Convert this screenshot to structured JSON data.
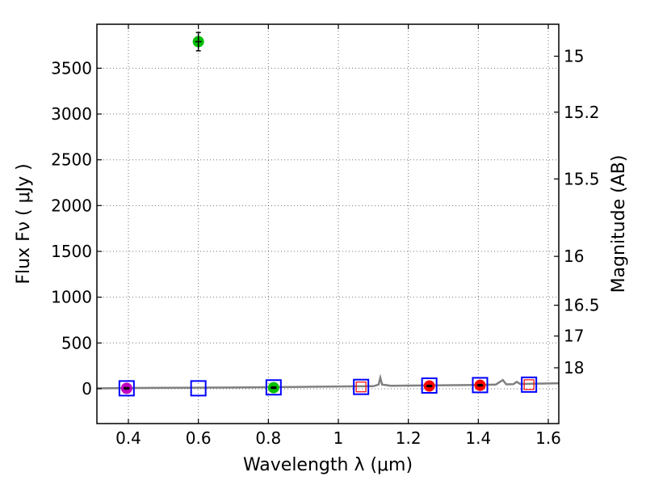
{
  "chart_data": {
    "type": "scatter",
    "title": "",
    "xlabel": "Wavelength  λ (μm)",
    "ylabel": "Flux  Fν  ( μJy )",
    "ylabel2": "Magnitude (AB)",
    "xlim": [
      0.31,
      1.63
    ],
    "ylim": [
      -380,
      3980
    ],
    "x_ticks": [
      0.4,
      0.6,
      0.8,
      1.0,
      1.2,
      1.4,
      1.6
    ],
    "x_tick_labels": [
      "0.4",
      "0.6",
      "0.8",
      "1",
      "1.2",
      "1.4",
      "1.6"
    ],
    "y_ticks": [
      0,
      500,
      1000,
      1500,
      2000,
      2500,
      3000,
      3500
    ],
    "y_tick_labels": [
      "0",
      "500",
      "1000",
      "1500",
      "2000",
      "2500",
      "3000",
      "3500"
    ],
    "mag_ticks": [
      15,
      15.2,
      15.5,
      16,
      16.5,
      17,
      18
    ],
    "mag_tick_labels": [
      "15",
      "15.2",
      "15.5",
      "16",
      "16.5",
      "17",
      "18"
    ],
    "grid": true,
    "colors": {
      "model": "#808080",
      "model_box": "#0000ff",
      "magenta": "#bf00bf",
      "green": "#00bf00",
      "red": "#ff0000",
      "errorbar": "#000000"
    },
    "series": [
      {
        "name": "model spectrum",
        "kind": "line",
        "x": [
          0.31,
          0.4,
          0.5,
          0.6,
          0.7,
          0.8,
          0.9,
          1.0,
          1.05,
          1.1,
          1.115,
          1.12,
          1.125,
          1.15,
          1.2,
          1.3,
          1.4,
          1.45,
          1.47,
          1.48,
          1.5,
          1.51,
          1.52,
          1.55,
          1.6,
          1.63
        ],
        "y": [
          5,
          8,
          10,
          12,
          14,
          17,
          21,
          25,
          27,
          28,
          45,
          120,
          45,
          32,
          35,
          38,
          42,
          46,
          95,
          48,
          50,
          75,
          52,
          55,
          58,
          60
        ]
      },
      {
        "name": "model photometry",
        "kind": "open-square",
        "x": [
          0.395,
          0.6,
          0.815,
          1.065,
          1.26,
          1.405,
          1.545
        ],
        "y": [
          5,
          5,
          15,
          20,
          35,
          40,
          45
        ]
      },
      {
        "name": "observed (magenta)",
        "kind": "dot",
        "color_key": "magenta",
        "x": [
          0.395
        ],
        "y": [
          5
        ],
        "yerr": [
          8
        ]
      },
      {
        "name": "observed (green)",
        "kind": "dot",
        "color_key": "green",
        "x": [
          0.6,
          0.815
        ],
        "y": [
          3790,
          12
        ],
        "yerr": [
          100,
          8
        ]
      },
      {
        "name": "observed (red)",
        "kind": "dot",
        "color_key": "red",
        "x": [
          1.26,
          1.405
        ],
        "y": [
          30,
          38
        ],
        "yerr": [
          8,
          8
        ]
      },
      {
        "name": "upper limit",
        "kind": "small-square",
        "color_key": "red",
        "x": [
          1.065,
          1.545
        ],
        "y": [
          20,
          45
        ]
      }
    ]
  }
}
